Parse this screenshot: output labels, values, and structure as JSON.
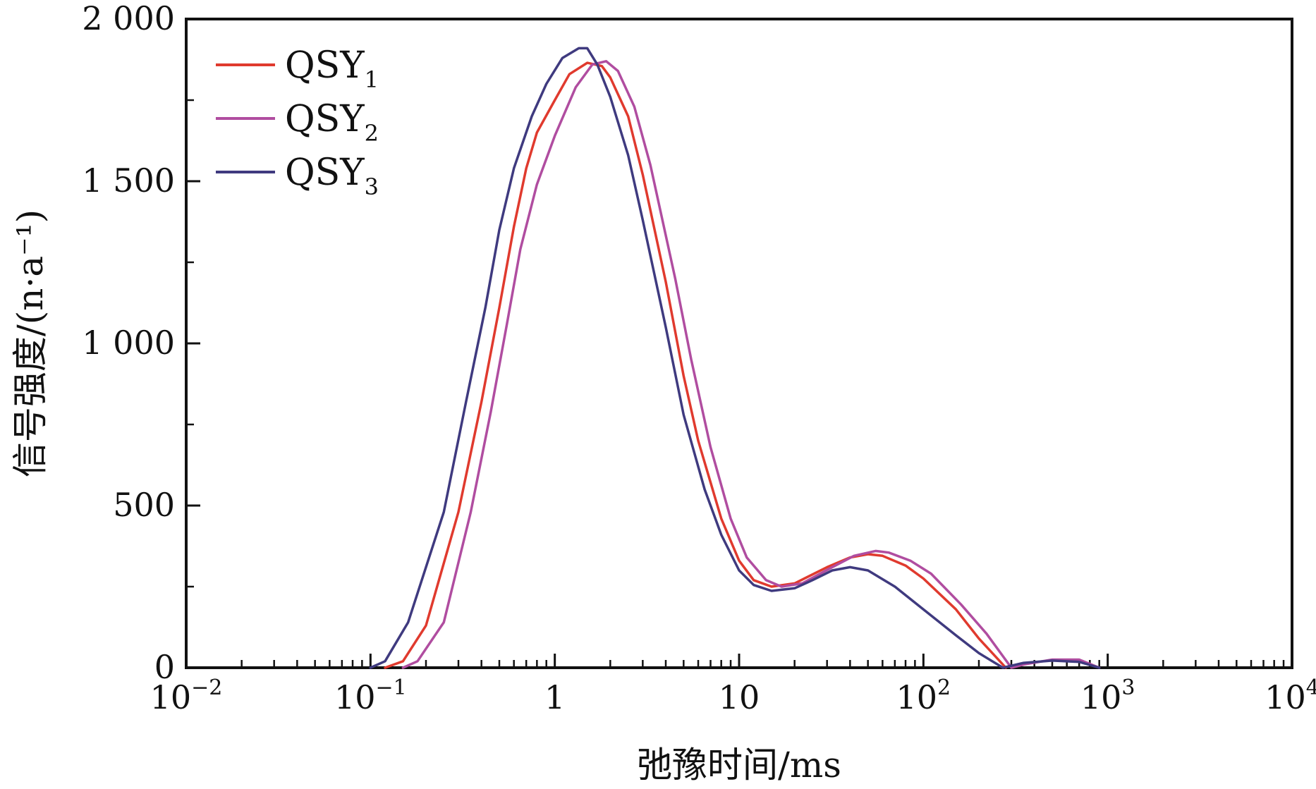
{
  "chart_data": {
    "type": "line",
    "title": "",
    "xlabel": "弛豫时间/ms",
    "ylabel": "信号强度/(n·a⁻¹)",
    "x_scale": "log",
    "xlim": [
      0.01,
      10000
    ],
    "ylim": [
      0,
      2000
    ],
    "x_ticks": [
      {
        "value": 0.01,
        "base": "10",
        "exp": "−2"
      },
      {
        "value": 0.1,
        "base": "10",
        "exp": "−1"
      },
      {
        "value": 1,
        "base": "1",
        "exp": ""
      },
      {
        "value": 10,
        "base": "10",
        "exp": ""
      },
      {
        "value": 100,
        "base": "10",
        "exp": "2"
      },
      {
        "value": 1000,
        "base": "10",
        "exp": "3"
      },
      {
        "value": 10000,
        "base": "10",
        "exp": "4"
      }
    ],
    "y_ticks": [
      {
        "value": 0,
        "label": "0"
      },
      {
        "value": 500,
        "label": "500"
      },
      {
        "value": 1000,
        "label": "1 000"
      },
      {
        "value": 1500,
        "label": "1 500"
      },
      {
        "value": 2000,
        "label": "2 000"
      }
    ],
    "grid": false,
    "legend_position": "top-left",
    "series": [
      {
        "name": "QSY",
        "subscript": "1",
        "color": "#e03a2e",
        "points": [
          [
            0.12,
            0
          ],
          [
            0.15,
            20
          ],
          [
            0.2,
            130
          ],
          [
            0.3,
            480
          ],
          [
            0.4,
            820
          ],
          [
            0.5,
            1110
          ],
          [
            0.6,
            1360
          ],
          [
            0.7,
            1540
          ],
          [
            0.8,
            1650
          ],
          [
            1.0,
            1750
          ],
          [
            1.2,
            1830
          ],
          [
            1.5,
            1865
          ],
          [
            1.8,
            1855
          ],
          [
            2.0,
            1820
          ],
          [
            2.5,
            1700
          ],
          [
            3.0,
            1520
          ],
          [
            4.0,
            1190
          ],
          [
            5.0,
            900
          ],
          [
            6.0,
            700
          ],
          [
            8.0,
            460
          ],
          [
            10,
            330
          ],
          [
            12,
            270
          ],
          [
            15,
            250
          ],
          [
            20,
            260
          ],
          [
            30,
            310
          ],
          [
            40,
            340
          ],
          [
            50,
            350
          ],
          [
            60,
            345
          ],
          [
            80,
            315
          ],
          [
            100,
            275
          ],
          [
            150,
            180
          ],
          [
            200,
            90
          ],
          [
            280,
            0
          ]
        ]
      },
      {
        "name": "QSY",
        "subscript": "2",
        "color": "#b04da0",
        "points": [
          [
            0.15,
            0
          ],
          [
            0.18,
            20
          ],
          [
            0.25,
            140
          ],
          [
            0.35,
            480
          ],
          [
            0.45,
            790
          ],
          [
            0.55,
            1060
          ],
          [
            0.65,
            1290
          ],
          [
            0.8,
            1490
          ],
          [
            1.0,
            1640
          ],
          [
            1.3,
            1790
          ],
          [
            1.6,
            1860
          ],
          [
            1.9,
            1870
          ],
          [
            2.2,
            1840
          ],
          [
            2.7,
            1730
          ],
          [
            3.3,
            1550
          ],
          [
            4.5,
            1200
          ],
          [
            5.5,
            950
          ],
          [
            7.0,
            680
          ],
          [
            9.0,
            460
          ],
          [
            11,
            340
          ],
          [
            14,
            270
          ],
          [
            17,
            250
          ],
          [
            22,
            260
          ],
          [
            32,
            310
          ],
          [
            42,
            345
          ],
          [
            55,
            360
          ],
          [
            65,
            355
          ],
          [
            85,
            330
          ],
          [
            110,
            290
          ],
          [
            160,
            195
          ],
          [
            220,
            105
          ],
          [
            300,
            0
          ],
          [
            350,
            10
          ],
          [
            500,
            25
          ],
          [
            700,
            25
          ],
          [
            900,
            0
          ]
        ]
      },
      {
        "name": "QSY",
        "subscript": "3",
        "color": "#3f3a7f",
        "points": [
          [
            0.1,
            0
          ],
          [
            0.12,
            20
          ],
          [
            0.16,
            140
          ],
          [
            0.25,
            480
          ],
          [
            0.33,
            820
          ],
          [
            0.42,
            1110
          ],
          [
            0.5,
            1350
          ],
          [
            0.6,
            1540
          ],
          [
            0.75,
            1700
          ],
          [
            0.9,
            1800
          ],
          [
            1.1,
            1880
          ],
          [
            1.35,
            1910
          ],
          [
            1.5,
            1910
          ],
          [
            1.7,
            1860
          ],
          [
            2.0,
            1760
          ],
          [
            2.5,
            1580
          ],
          [
            3.0,
            1380
          ],
          [
            4.0,
            1050
          ],
          [
            5.0,
            780
          ],
          [
            6.5,
            550
          ],
          [
            8.0,
            410
          ],
          [
            10,
            300
          ],
          [
            12,
            255
          ],
          [
            15,
            237
          ],
          [
            20,
            245
          ],
          [
            25,
            270
          ],
          [
            32,
            300
          ],
          [
            40,
            310
          ],
          [
            50,
            300
          ],
          [
            70,
            250
          ],
          [
            100,
            180
          ],
          [
            150,
            100
          ],
          [
            200,
            45
          ],
          [
            270,
            0
          ],
          [
            350,
            15
          ],
          [
            500,
            22
          ],
          [
            700,
            18
          ],
          [
            900,
            0
          ]
        ]
      }
    ]
  }
}
